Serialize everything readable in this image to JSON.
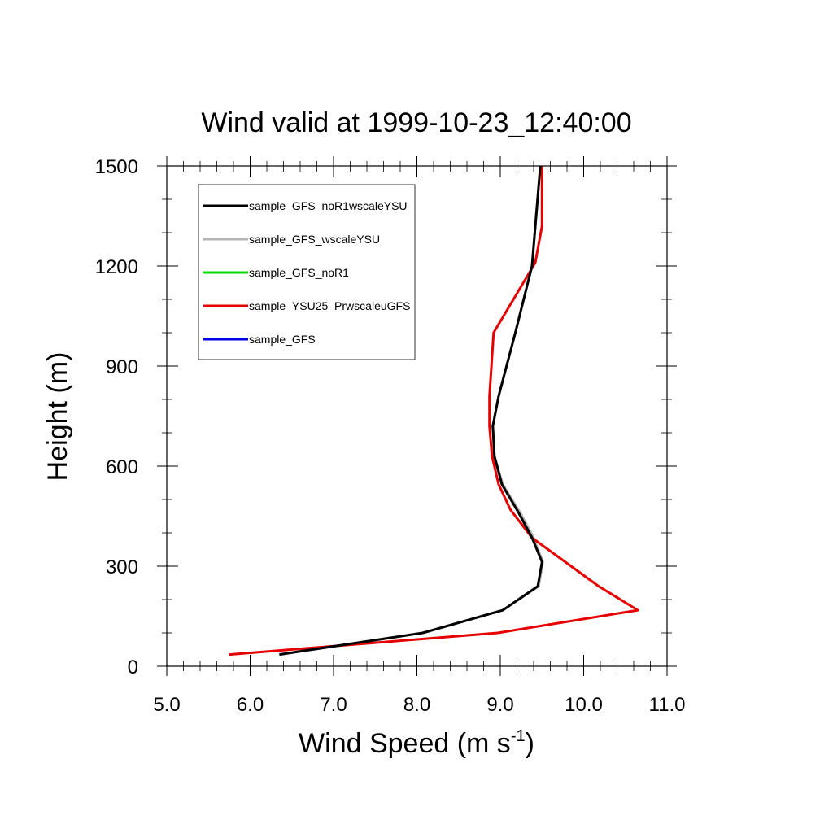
{
  "chart_data": {
    "type": "line",
    "title": "Wind valid at 1999-10-23_12:40:00",
    "xlabel": "Wind Speed (m s",
    "xlabel_sup": "-1",
    "xlabel_end": ")",
    "ylabel": "Height (m)",
    "xlim": [
      5.0,
      11.0
    ],
    "ylim": [
      0,
      1500
    ],
    "x_ticks": [
      5.0,
      6.0,
      7.0,
      8.0,
      9.0,
      10.0,
      11.0
    ],
    "x_tick_labels": [
      "5.0",
      "6.0",
      "7.0",
      "8.0",
      "9.0",
      "10.0",
      "11.0"
    ],
    "y_ticks": [
      0,
      300,
      600,
      900,
      1200,
      1500
    ],
    "y_tick_labels": [
      "0",
      "300",
      "600",
      "900",
      "1200",
      "1500"
    ],
    "grid": false,
    "legend_position": "top-left",
    "series": [
      {
        "name": "sample_GFS_noR1wscaleYSU",
        "color": "#000000",
        "x": [
          6.35,
          8.07,
          9.03,
          9.45,
          9.5,
          9.38,
          9.22,
          9.02,
          8.93,
          8.91,
          8.98,
          9.18,
          9.38,
          9.48
        ],
        "y": [
          35,
          100,
          168,
          240,
          313,
          385,
          460,
          545,
          630,
          720,
          810,
          1000,
          1200,
          1500
        ]
      },
      {
        "name": "sample_GFS_wscaleYSU",
        "color": "#b4b4b4",
        "x": [
          6.35,
          8.07,
          9.03,
          9.46,
          9.51,
          9.4,
          9.24,
          9.03,
          8.93,
          8.91,
          8.98,
          9.18,
          9.38,
          9.48
        ],
        "y": [
          35,
          100,
          168,
          240,
          313,
          385,
          460,
          545,
          630,
          720,
          810,
          1000,
          1200,
          1500
        ]
      },
      {
        "name": "sample_GFS_noR1",
        "color": "#00dc00",
        "x": [],
        "y": []
      },
      {
        "name": "sample_YSU25_PrwscaleuGFS",
        "color": "#e60000",
        "x": [
          5.75,
          8.97,
          10.65,
          10.18,
          9.38,
          9.12,
          8.98,
          8.9,
          8.87,
          8.87,
          8.92,
          9.42,
          9.5,
          9.5
        ],
        "y": [
          35,
          100,
          168,
          240,
          385,
          470,
          545,
          630,
          720,
          810,
          1000,
          1210,
          1320,
          1500
        ]
      },
      {
        "name": "sample_GFS",
        "color": "#0000e6",
        "x": [],
        "y": []
      }
    ]
  }
}
